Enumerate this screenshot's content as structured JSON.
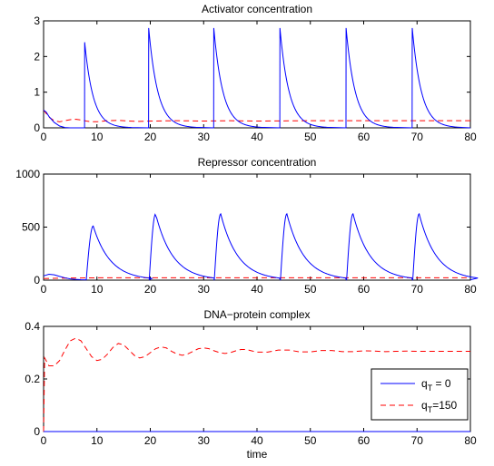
{
  "colors": {
    "q0": "#0000ff",
    "q150": "#ff0000",
    "axes": "#000000",
    "background": "#ffffff"
  },
  "legend": {
    "placement": "bottom-right of third panel",
    "entries": [
      {
        "base": "q",
        "sub": "T",
        "rest": " = 0",
        "style": "solid",
        "color_key": "q0"
      },
      {
        "base": "q",
        "sub": "T",
        "rest": "=150",
        "style": "dashed",
        "color_key": "q150"
      }
    ]
  },
  "chart_data": [
    {
      "type": "line",
      "title": "Activator concentration",
      "xlabel": "",
      "xlim": [
        0,
        80
      ],
      "ylim": [
        0,
        3
      ],
      "xticks": [
        "0",
        "10",
        "20",
        "30",
        "40",
        "50",
        "60",
        "70",
        "80"
      ],
      "yticks": [
        "0",
        "1",
        "2",
        "3"
      ],
      "grid": false,
      "series": [
        {
          "key": "q0",
          "style": "solid",
          "baseline": 0.5,
          "initial": [
            [
              0,
              0.5
            ],
            [
              0.5,
              0.44
            ],
            [
              1,
              0.32
            ],
            [
              2,
              0.15
            ],
            [
              3,
              0.05
            ],
            [
              4,
              0.01
            ],
            [
              5,
              0.0
            ]
          ],
          "spikes": [
            {
              "t": 7.7,
              "peak": 2.4,
              "tau": 1.6
            },
            {
              "t": 19.7,
              "peak": 2.8,
              "tau": 1.7
            },
            {
              "t": 31.9,
              "peak": 2.8,
              "tau": 1.7
            },
            {
              "t": 44.3,
              "peak": 2.8,
              "tau": 1.7
            },
            {
              "t": 56.7,
              "peak": 2.8,
              "tau": 1.7
            },
            {
              "t": 69.1,
              "peak": 2.8,
              "tau": 1.7
            }
          ]
        },
        {
          "key": "q150",
          "style": "dashed",
          "points": [
            [
              0,
              0.5
            ],
            [
              0.5,
              0.4
            ],
            [
              1,
              0.3
            ],
            [
              2,
              0.2
            ],
            [
              3,
              0.17
            ],
            [
              4,
              0.2
            ],
            [
              5,
              0.23
            ],
            [
              6,
              0.24
            ],
            [
              7,
              0.22
            ],
            [
              8,
              0.19
            ],
            [
              9,
              0.17
            ],
            [
              10,
              0.17
            ],
            [
              12,
              0.2
            ],
            [
              14,
              0.21
            ],
            [
              16,
              0.19
            ],
            [
              18,
              0.18
            ],
            [
              20,
              0.19
            ],
            [
              25,
              0.2
            ],
            [
              30,
              0.19
            ],
            [
              35,
              0.2
            ],
            [
              40,
              0.19
            ],
            [
              50,
              0.2
            ],
            [
              60,
              0.2
            ],
            [
              70,
              0.2
            ],
            [
              80,
              0.2
            ]
          ]
        }
      ]
    },
    {
      "type": "line",
      "title": "Repressor concentration",
      "xlabel": "",
      "xlim": [
        0,
        80
      ],
      "ylim": [
        0,
        1000
      ],
      "xticks": [
        "0",
        "10",
        "20",
        "30",
        "40",
        "50",
        "60",
        "70",
        "80"
      ],
      "yticks": [
        "0",
        "500",
        "1000"
      ],
      "grid": false,
      "series": [
        {
          "key": "q0",
          "style": "solid",
          "initial": [
            [
              0,
              40
            ],
            [
              1,
              55
            ],
            [
              2,
              50
            ],
            [
              3,
              35
            ],
            [
              4,
              22
            ],
            [
              5,
              12
            ],
            [
              6,
              7
            ],
            [
              7,
              4
            ],
            [
              8,
              3
            ]
          ],
          "pulses": [
            {
              "t": 8.0,
              "peak_t": 9.3,
              "peak": 510,
              "tau": 3.2
            },
            {
              "t": 19.8,
              "peak_t": 21.0,
              "peak": 625,
              "tau": 3.2
            },
            {
              "t": 32.0,
              "peak_t": 33.2,
              "peak": 625,
              "tau": 3.2
            },
            {
              "t": 44.4,
              "peak_t": 45.6,
              "peak": 625,
              "tau": 3.2
            },
            {
              "t": 56.8,
              "peak_t": 58.0,
              "peak": 625,
              "tau": 3.2
            },
            {
              "t": 69.2,
              "peak_t": 70.4,
              "peak": 625,
              "tau": 3.2
            }
          ]
        },
        {
          "key": "q150",
          "style": "dashed",
          "points": [
            [
              0,
              15
            ],
            [
              5,
              20
            ],
            [
              10,
              22
            ],
            [
              20,
              22
            ],
            [
              30,
              22
            ],
            [
              40,
              22
            ],
            [
              50,
              22
            ],
            [
              60,
              22
            ],
            [
              70,
              22
            ],
            [
              80,
              22
            ]
          ]
        }
      ]
    },
    {
      "type": "line",
      "title": "DNA−protein complex",
      "xlabel": "time",
      "xlim": [
        0,
        80
      ],
      "ylim": [
        0,
        0.4
      ],
      "xticks": [
        "0",
        "10",
        "20",
        "30",
        "40",
        "50",
        "60",
        "70",
        "80"
      ],
      "yticks": [
        "0",
        "0.2",
        "0.4"
      ],
      "grid": false,
      "series": [
        {
          "key": "q0",
          "style": "solid",
          "points": [
            [
              0,
              0
            ],
            [
              80,
              0
            ]
          ]
        },
        {
          "key": "q150",
          "style": "dashed",
          "points": [
            [
              0,
              0.0
            ],
            [
              0.2,
              0.28
            ],
            [
              1,
              0.25
            ],
            [
              2,
              0.25
            ],
            [
              3,
              0.27
            ],
            [
              4,
              0.31
            ],
            [
              5,
              0.345
            ],
            [
              6,
              0.355
            ],
            [
              7,
              0.345
            ],
            [
              8,
              0.315
            ],
            [
              9,
              0.285
            ],
            [
              10,
              0.27
            ],
            [
              11,
              0.275
            ],
            [
              12,
              0.295
            ],
            [
              13,
              0.32
            ],
            [
              14,
              0.335
            ],
            [
              15,
              0.33
            ],
            [
              16,
              0.31
            ],
            [
              17,
              0.29
            ],
            [
              18,
              0.28
            ],
            [
              19,
              0.285
            ],
            [
              20,
              0.3
            ],
            [
              21,
              0.315
            ],
            [
              22,
              0.322
            ],
            [
              23,
              0.318
            ],
            [
              24,
              0.305
            ],
            [
              25,
              0.295
            ],
            [
              26,
              0.29
            ],
            [
              27,
              0.295
            ],
            [
              28,
              0.305
            ],
            [
              29,
              0.315
            ],
            [
              30,
              0.318
            ],
            [
              31,
              0.315
            ],
            [
              32,
              0.307
            ],
            [
              33,
              0.3
            ],
            [
              34,
              0.297
            ],
            [
              35,
              0.3
            ],
            [
              36,
              0.307
            ],
            [
              37,
              0.312
            ],
            [
              38,
              0.312
            ],
            [
              39,
              0.307
            ],
            [
              40,
              0.302
            ],
            [
              42,
              0.302
            ],
            [
              44,
              0.31
            ],
            [
              46,
              0.31
            ],
            [
              48,
              0.303
            ],
            [
              50,
              0.303
            ],
            [
              52,
              0.308
            ],
            [
              54,
              0.308
            ],
            [
              56,
              0.304
            ],
            [
              58,
              0.304
            ],
            [
              60,
              0.307
            ],
            [
              62,
              0.306
            ],
            [
              64,
              0.304
            ],
            [
              66,
              0.305
            ],
            [
              68,
              0.306
            ],
            [
              70,
              0.305
            ],
            [
              72,
              0.305
            ],
            [
              74,
              0.305
            ],
            [
              76,
              0.305
            ],
            [
              78,
              0.305
            ],
            [
              80,
              0.305
            ]
          ]
        }
      ]
    }
  ]
}
